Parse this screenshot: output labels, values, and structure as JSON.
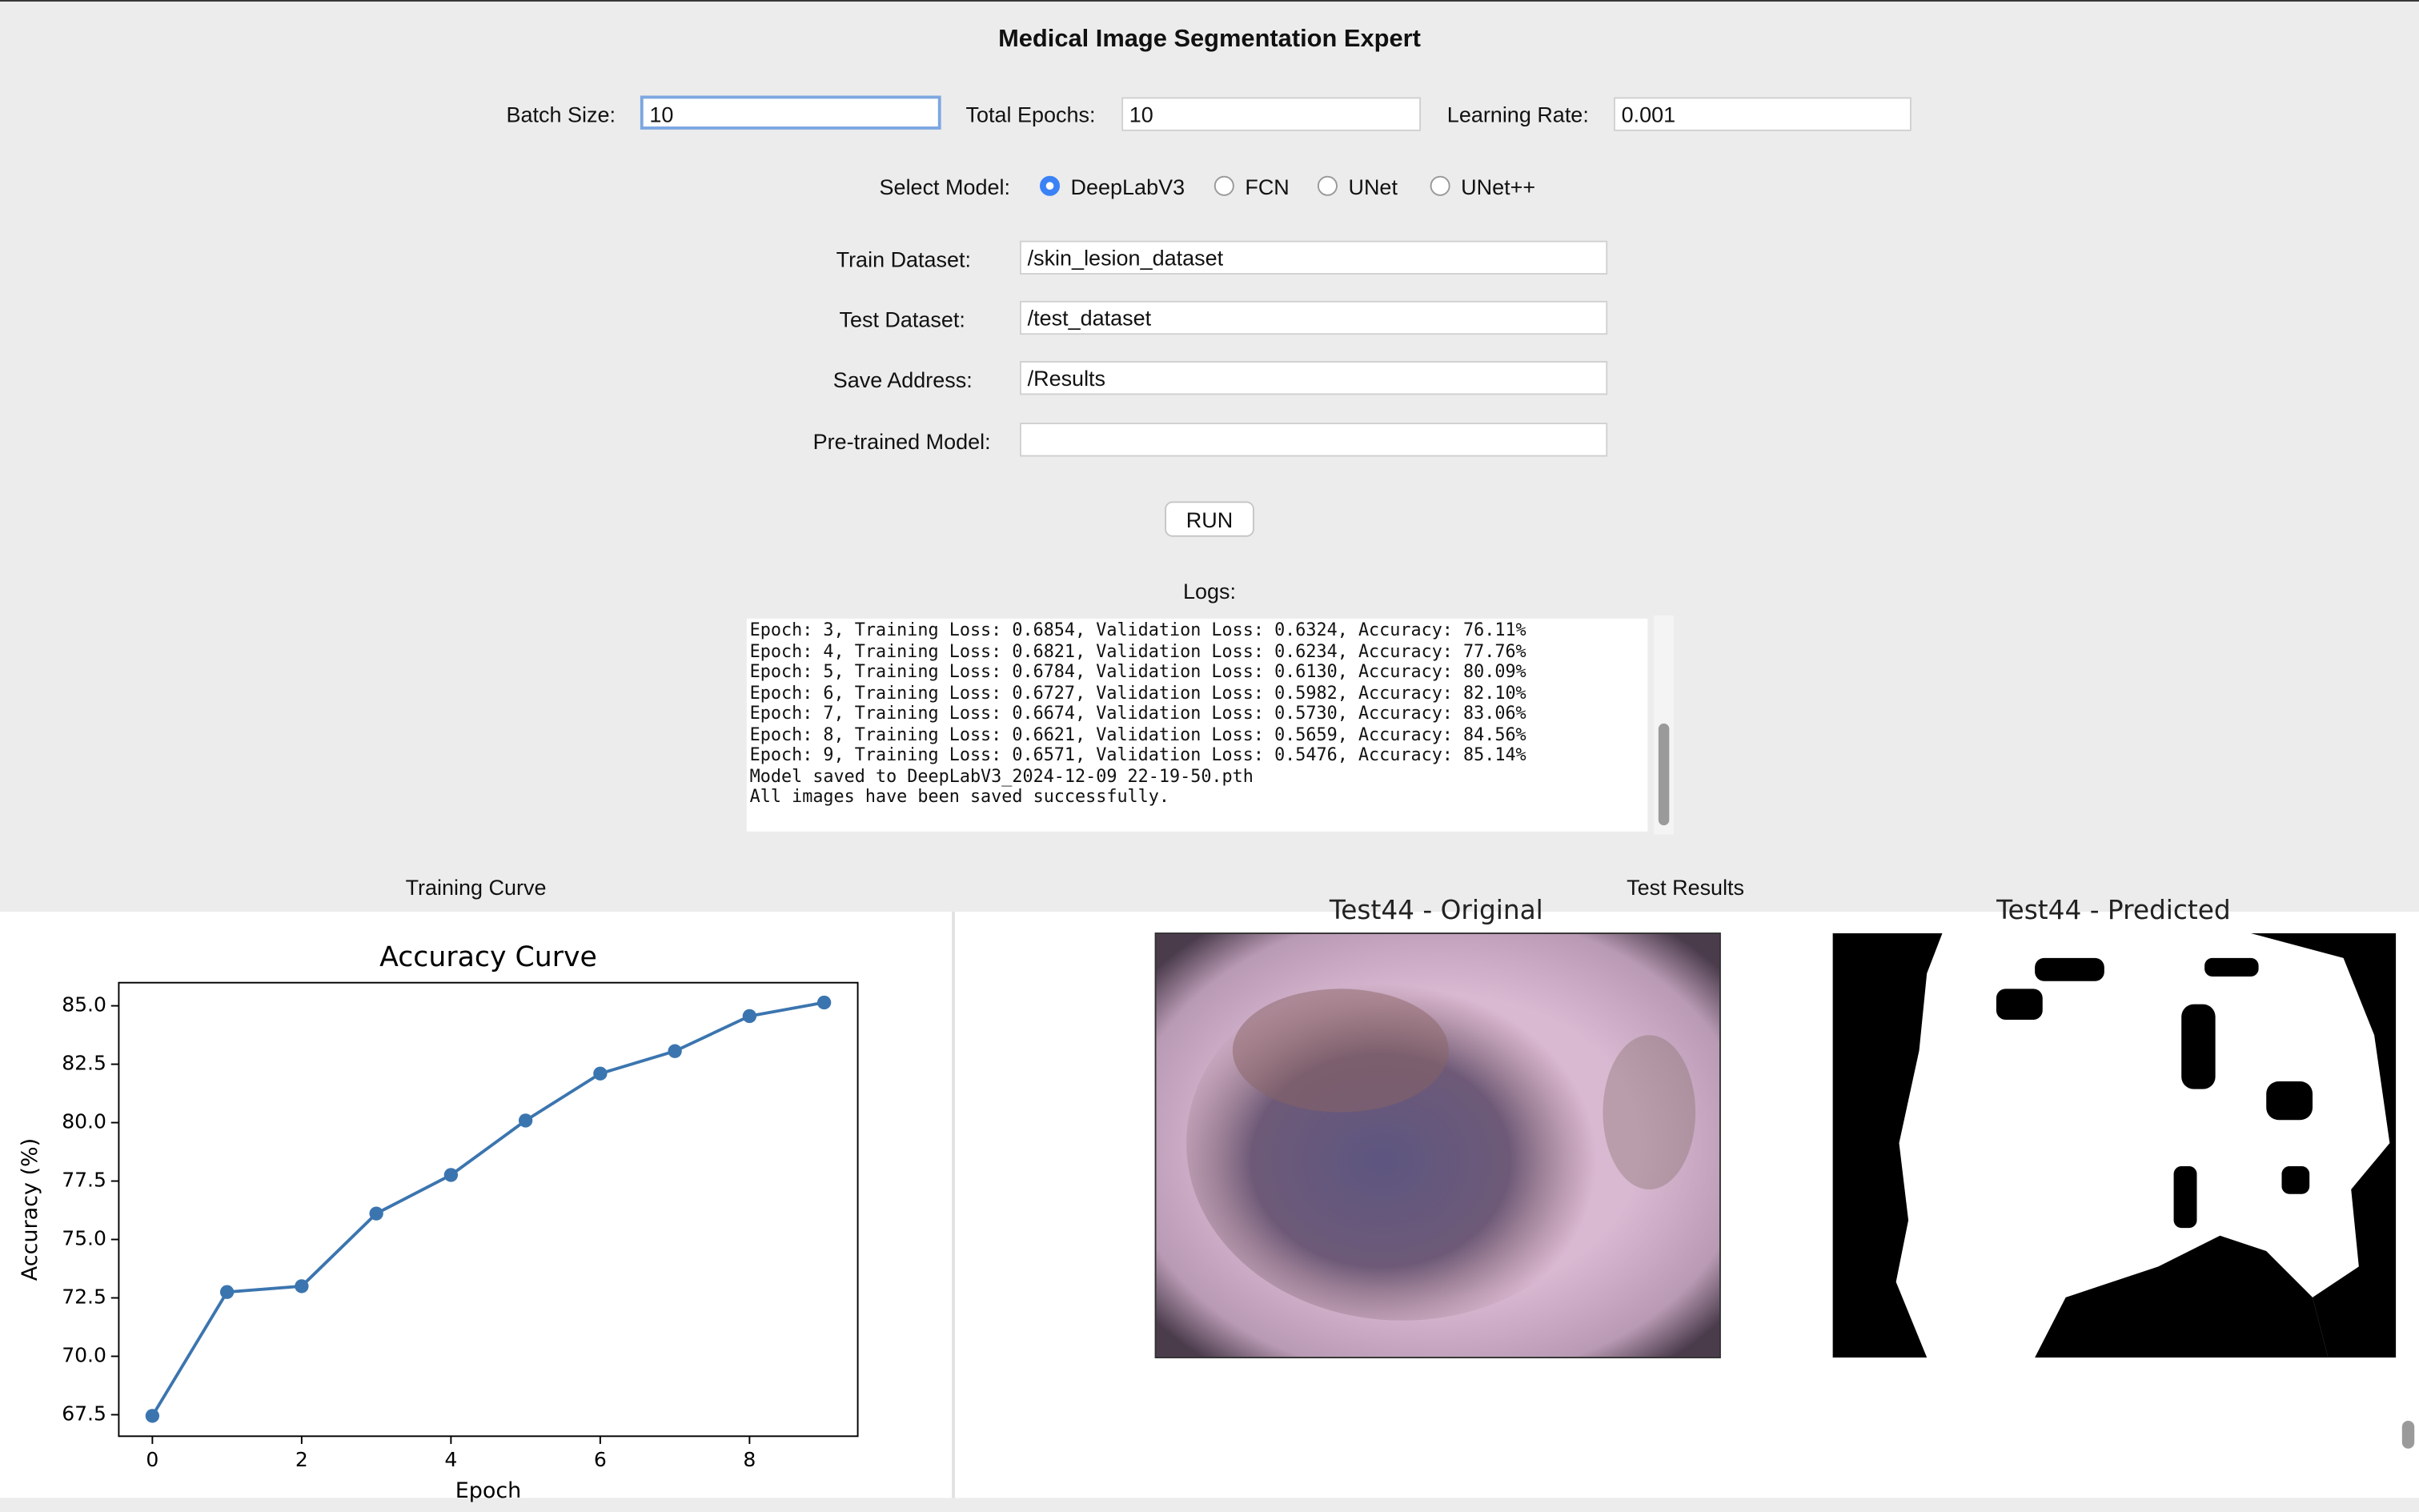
{
  "window": {
    "title": "Medical Image Segmentation Expert"
  },
  "params": [
    {
      "label": "Batch Size:",
      "value": "10"
    },
    {
      "label": "Total Epochs:",
      "value": "10"
    },
    {
      "label": "Learning Rate:",
      "value": "0.001"
    }
  ],
  "model": {
    "label": "Select Model:",
    "options": [
      "DeepLabV3",
      "FCN",
      "UNet",
      "UNet++"
    ],
    "selected": 0
  },
  "paths": [
    {
      "label": "Train Dataset:",
      "value": "/skin_lesion_dataset"
    },
    {
      "label": "Test Dataset:",
      "value": "/test_dataset"
    },
    {
      "label": "Save Address:",
      "value": "/Results"
    },
    {
      "label": "Pre-trained Model:"
    }
  ],
  "run_button": "RUN",
  "logs": {
    "label": "Logs:",
    "lines": [
      "Epoch: 3, Training Loss: 0.6854, Validation Loss: 0.6324, Accuracy: 76.11%",
      "Epoch: 4, Training Loss: 0.6821, Validation Loss: 0.6234, Accuracy: 77.76%",
      "Epoch: 5, Training Loss: 0.6784, Validation Loss: 0.6130, Accuracy: 80.09%",
      "Epoch: 6, Training Loss: 0.6727, Validation Loss: 0.5982, Accuracy: 82.10%",
      "Epoch: 7, Training Loss: 0.6674, Validation Loss: 0.5730, Accuracy: 83.06%",
      "Epoch: 8, Training Loss: 0.6621, Validation Loss: 0.5659, Accuracy: 84.56%",
      "Epoch: 9, Training Loss: 0.6571, Validation Loss: 0.5476, Accuracy: 85.14%",
      "Model saved to DeepLabV3_2024-12-09 22-19-50.pth",
      "All images have been saved successfully."
    ]
  },
  "training_curve": {
    "label": "Training Curve"
  },
  "test_results": {
    "label": "Test Results",
    "images": [
      {
        "title": "Test44 - Original"
      },
      {
        "title": "Test44 - Predicted"
      }
    ]
  },
  "chart_data": {
    "type": "line",
    "title": "Accuracy Curve",
    "x_label": "Epoch",
    "y_label": "Accuracy (%)",
    "x": [
      0,
      1,
      2,
      3,
      4,
      5,
      6,
      7,
      8,
      9
    ],
    "series": [
      {
        "color": "#3b75af",
        "values": [
          67.45,
          72.75,
          73.0,
          76.11,
          77.76,
          80.09,
          82.1,
          83.06,
          84.56,
          85.14
        ]
      }
    ],
    "xlim": [
      -0.45,
      9.45
    ],
    "ylim": [
      66.58,
      85.99
    ],
    "xticks": [
      0,
      2,
      4,
      6,
      8
    ],
    "yticks": [
      67.5,
      {
        "value": 70,
        "label": "70.0"
      },
      72.5,
      {
        "value": 75,
        "label": "75.0"
      },
      77.5,
      {
        "value": 80,
        "label": "80.0"
      },
      82.5,
      {
        "value": 85,
        "label": "85.0"
      }
    ],
    "markers": true
  }
}
